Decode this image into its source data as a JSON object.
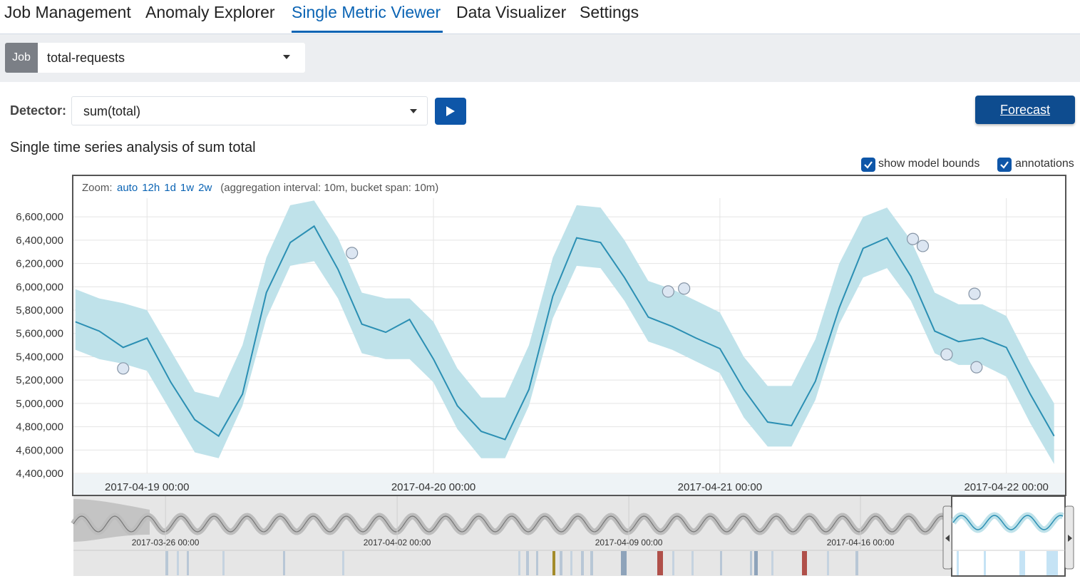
{
  "tabs": [
    "Job Management",
    "Anomaly Explorer",
    "Single Metric Viewer",
    "Data Visualizer",
    "Settings"
  ],
  "job": {
    "label": "Job",
    "value": "total-requests"
  },
  "detector": {
    "label": "Detector:",
    "value": "sum(total)"
  },
  "forecast_button": "Forecast",
  "title": "Single time series analysis of sum total",
  "options": [
    "show model bounds",
    "annotations"
  ],
  "zoom": {
    "label": "Zoom:",
    "options": [
      "auto",
      "12h",
      "1d",
      "1w",
      "2w"
    ],
    "info": "(aggregation interval: 10m, bucket span: 10m)"
  },
  "chart_data": {
    "type": "line",
    "color": "#2b8fb3",
    "x": [
      "2017-04-18 18:00",
      "2017-04-18 20:00",
      "2017-04-18 22:00",
      "2017-04-19 00:00",
      "2017-04-19 02:00",
      "2017-04-19 04:00",
      "2017-04-19 06:00",
      "2017-04-19 08:00",
      "2017-04-19 10:00",
      "2017-04-19 12:00",
      "2017-04-19 14:00",
      "2017-04-19 16:00",
      "2017-04-19 18:00",
      "2017-04-19 20:00",
      "2017-04-19 22:00",
      "2017-04-20 00:00",
      "2017-04-20 02:00",
      "2017-04-20 04:00",
      "2017-04-20 06:00",
      "2017-04-20 08:00",
      "2017-04-20 10:00",
      "2017-04-20 12:00",
      "2017-04-20 14:00",
      "2017-04-20 16:00",
      "2017-04-20 18:00",
      "2017-04-20 20:00",
      "2017-04-20 22:00",
      "2017-04-21 00:00",
      "2017-04-21 02:00",
      "2017-04-21 04:00",
      "2017-04-21 06:00",
      "2017-04-21 08:00",
      "2017-04-21 10:00",
      "2017-04-21 12:00",
      "2017-04-21 14:00",
      "2017-04-21 16:00",
      "2017-04-21 18:00",
      "2017-04-21 20:00",
      "2017-04-21 22:00",
      "2017-04-22 00:00",
      "2017-04-22 02:00",
      "2017-04-22 04:00"
    ],
    "values": [
      5700000,
      5620000,
      5480000,
      5560000,
      5180000,
      4860000,
      4720000,
      5080000,
      5950000,
      6380000,
      6520000,
      6150000,
      5680000,
      5610000,
      5720000,
      5380000,
      4980000,
      4760000,
      4690000,
      5120000,
      5920000,
      6420000,
      6380000,
      6080000,
      5740000,
      5660000,
      5560000,
      5470000,
      5120000,
      4840000,
      4810000,
      5190000,
      5820000,
      6330000,
      6420000,
      6090000,
      5620000,
      5530000,
      5560000,
      5480000,
      5080000,
      4720000
    ],
    "bounds": {
      "color": "#bfe2ea",
      "upper": [
        5980000,
        5900000,
        5860000,
        5800000,
        5450000,
        5100000,
        5050000,
        5500000,
        6250000,
        6700000,
        6740000,
        6420000,
        5950000,
        5900000,
        5900000,
        5700000,
        5300000,
        5050000,
        5050000,
        5500000,
        6250000,
        6700000,
        6680000,
        6400000,
        6050000,
        5980000,
        5880000,
        5780000,
        5400000,
        5150000,
        5150000,
        5550000,
        6200000,
        6600000,
        6680000,
        6400000,
        5950000,
        5850000,
        5850000,
        5750000,
        5350000,
        5000000
      ],
      "lower": [
        5460000,
        5380000,
        5340000,
        5280000,
        4930000,
        4580000,
        4530000,
        4980000,
        5730000,
        6180000,
        6220000,
        5900000,
        5430000,
        5380000,
        5380000,
        5180000,
        4780000,
        4530000,
        4530000,
        4980000,
        5730000,
        6180000,
        6160000,
        5880000,
        5530000,
        5460000,
        5360000,
        5260000,
        4880000,
        4630000,
        4630000,
        5030000,
        5680000,
        6080000,
        6160000,
        5880000,
        5430000,
        5330000,
        5330000,
        5230000,
        4830000,
        4480000
      ]
    },
    "anomalies": {
      "x": [
        "2017-04-18 22:00",
        "2017-04-19 17:10",
        "2017-04-20 19:40",
        "2017-04-20 21:00",
        "2017-04-21 16:10",
        "2017-04-21 17:00",
        "2017-04-21 19:00",
        "2017-04-21 21:20",
        "2017-04-21 21:30"
      ],
      "values": [
        5300000,
        6290000,
        5960000,
        5985000,
        6410000,
        6350000,
        5420000,
        5940000,
        5310000
      ]
    },
    "xlim": [
      "2017-04-18 17:50",
      "2017-04-22 04:55"
    ],
    "xticks": [
      "2017-04-19 00:00",
      "2017-04-20 00:00",
      "2017-04-21 00:00",
      "2017-04-22 00:00"
    ],
    "ylim": [
      4400000,
      6760000
    ],
    "yticks": [
      {
        "value": 4400000,
        "label": "4,400,000"
      },
      {
        "value": 4600000,
        "label": "4,600,000"
      },
      {
        "value": 4800000,
        "label": "4,800,000"
      },
      {
        "value": 5000000,
        "label": "5,000,000"
      },
      {
        "value": 5200000,
        "label": "5,200,000"
      },
      {
        "value": 5400000,
        "label": "5,400,000"
      },
      {
        "value": 5600000,
        "label": "5,600,000"
      },
      {
        "value": 5800000,
        "label": "5,800,000"
      },
      {
        "value": 6000000,
        "label": "6,000,000"
      },
      {
        "value": 6200000,
        "label": "6,200,000"
      },
      {
        "value": 6400000,
        "label": "6,400,000"
      },
      {
        "value": 6600000,
        "label": "6,600,000"
      }
    ],
    "grid": true
  },
  "context_chart": {
    "xlim": [
      "2017-03-23 05:15",
      "2017-04-22 04:20"
    ],
    "xticks": [
      "2017-03-26 00:00",
      "2017-04-02 00:00",
      "2017-04-09 00:00",
      "2017-04-16 00:00"
    ]
  }
}
